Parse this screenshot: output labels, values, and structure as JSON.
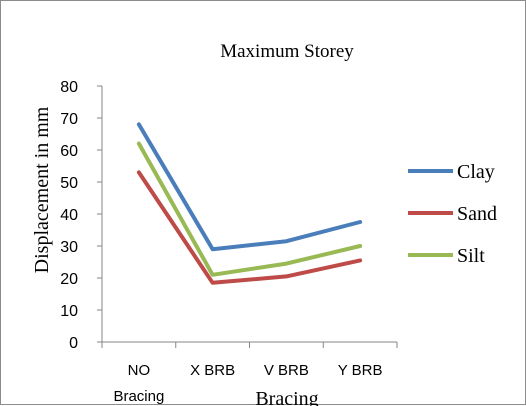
{
  "chart_data": {
    "type": "line",
    "title": "Maximum Storey",
    "xlabel": "Bracing",
    "ylabel": "Displacement in mm",
    "categories": [
      "NO Bracing",
      "X BRB",
      "V BRB",
      "Y BRB"
    ],
    "category_lines": [
      [
        "NO",
        "Bracing"
      ],
      [
        "X BRB"
      ],
      [
        "V BRB"
      ],
      [
        "Y BRB"
      ]
    ],
    "ylim": [
      0,
      80
    ],
    "yticks": [
      0,
      10,
      20,
      30,
      40,
      50,
      60,
      70,
      80
    ],
    "grid": false,
    "legend_position": "right",
    "series": [
      {
        "name": "Clay",
        "color": "#4a7ebb",
        "values": [
          68,
          29,
          31.5,
          37.5
        ]
      },
      {
        "name": "Sand",
        "color": "#be4b48",
        "values": [
          53,
          18.5,
          20.5,
          25.5
        ]
      },
      {
        "name": "Silt",
        "color": "#98b954",
        "values": [
          62,
          21,
          24.5,
          30
        ]
      }
    ]
  }
}
